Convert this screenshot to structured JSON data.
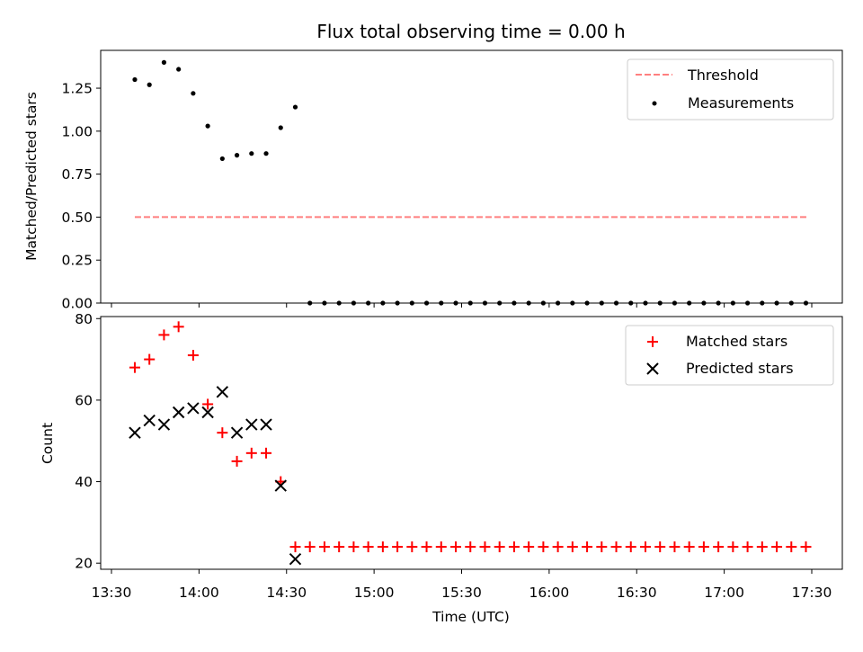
{
  "chart_data": [
    {
      "type": "scatter",
      "title": "Flux total observing time = 0.00 h",
      "xlabel": "",
      "ylabel": "Matched/Predicted stars",
      "ylim": [
        0,
        1.47
      ],
      "yticks": [
        "0.00",
        "0.25",
        "0.50",
        "0.75",
        "1.00",
        "1.25"
      ],
      "ytick_values": [
        0,
        0.25,
        0.5,
        0.75,
        1.0,
        1.25
      ],
      "grid": false,
      "legend_position": "top-right",
      "series": [
        {
          "name": "Threshold",
          "style": "dashed-line",
          "color": "#ff7f7f",
          "x": [
            "13:38",
            "17:29"
          ],
          "y": [
            0.5,
            0.5
          ]
        },
        {
          "name": "Measurements",
          "style": "dot",
          "color": "#000000",
          "x": [
            "13:38",
            "13:43",
            "13:48",
            "13:53",
            "13:58",
            "14:03",
            "14:08",
            "14:13",
            "14:18",
            "14:23",
            "14:28",
            "14:33",
            "14:38",
            "14:43",
            "14:48",
            "14:53",
            "14:58",
            "15:03",
            "15:08",
            "15:13",
            "15:18",
            "15:23",
            "15:28",
            "15:33",
            "15:38",
            "15:43",
            "15:48",
            "15:53",
            "15:58",
            "16:03",
            "16:08",
            "16:13",
            "16:18",
            "16:23",
            "16:28",
            "16:33",
            "16:38",
            "16:43",
            "16:48",
            "16:53",
            "16:58",
            "17:03",
            "17:08",
            "17:13",
            "17:18",
            "17:23",
            "17:28"
          ],
          "y": [
            1.3,
            1.27,
            1.4,
            1.36,
            1.22,
            1.03,
            0.84,
            0.86,
            0.87,
            0.87,
            1.02,
            1.14,
            0,
            0,
            0,
            0,
            0,
            0,
            0,
            0,
            0,
            0,
            0,
            0,
            0,
            0,
            0,
            0,
            0,
            0,
            0,
            0,
            0,
            0,
            0,
            0,
            0,
            0,
            0,
            0,
            0,
            0,
            0,
            0,
            0,
            0,
            0
          ]
        }
      ]
    },
    {
      "type": "scatter",
      "title": "",
      "xlabel": "Time (UTC)",
      "ylabel": "Count",
      "ylim": [
        18.5,
        80.5
      ],
      "yticks": [
        "20",
        "40",
        "60",
        "80"
      ],
      "ytick_values": [
        20,
        40,
        60,
        80
      ],
      "xticks": [
        "13:30",
        "14:00",
        "14:30",
        "15:00",
        "15:30",
        "16:00",
        "16:30",
        "17:00",
        "17:30"
      ],
      "xtick_values": [
        "13:30",
        "14:00",
        "14:30",
        "15:00",
        "15:30",
        "16:00",
        "16:30",
        "17:00",
        "17:30"
      ],
      "grid": false,
      "legend_position": "top-right",
      "series": [
        {
          "name": "Matched stars",
          "marker": "+",
          "color": "#ff0000",
          "x": [
            "13:38",
            "13:43",
            "13:48",
            "13:53",
            "13:58",
            "14:03",
            "14:08",
            "14:13",
            "14:18",
            "14:23",
            "14:28",
            "14:33",
            "14:38",
            "14:43",
            "14:48",
            "14:53",
            "14:58",
            "15:03",
            "15:08",
            "15:13",
            "15:18",
            "15:23",
            "15:28",
            "15:33",
            "15:38",
            "15:43",
            "15:48",
            "15:53",
            "15:58",
            "16:03",
            "16:08",
            "16:13",
            "16:18",
            "16:23",
            "16:28",
            "16:33",
            "16:38",
            "16:43",
            "16:48",
            "16:53",
            "16:58",
            "17:03",
            "17:08",
            "17:13",
            "17:18",
            "17:23",
            "17:28"
          ],
          "y": [
            68,
            70,
            76,
            78,
            71,
            59,
            52,
            45,
            47,
            47,
            40,
            24,
            24,
            24,
            24,
            24,
            24,
            24,
            24,
            24,
            24,
            24,
            24,
            24,
            24,
            24,
            24,
            24,
            24,
            24,
            24,
            24,
            24,
            24,
            24,
            24,
            24,
            24,
            24,
            24,
            24,
            24,
            24,
            24,
            24,
            24,
            24
          ]
        },
        {
          "name": "Predicted stars",
          "marker": "x",
          "color": "#000000",
          "x": [
            "13:38",
            "13:43",
            "13:48",
            "13:53",
            "13:58",
            "14:03",
            "14:08",
            "14:13",
            "14:18",
            "14:23",
            "14:28",
            "14:33"
          ],
          "y": [
            52,
            55,
            54,
            57,
            58,
            57,
            62,
            52,
            54,
            54,
            39,
            21
          ]
        }
      ]
    }
  ]
}
